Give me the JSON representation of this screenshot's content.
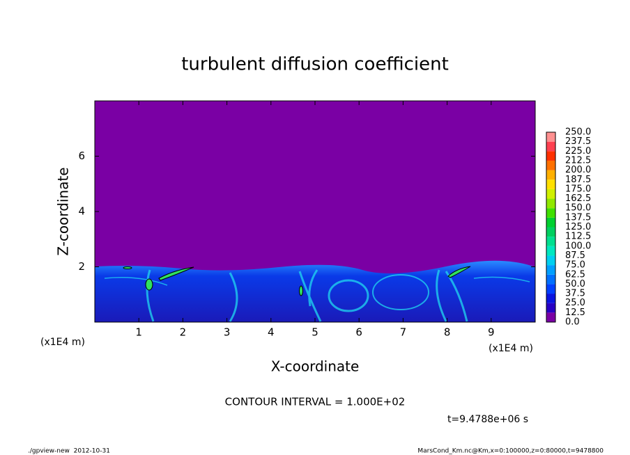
{
  "chart_data": {
    "type": "contour",
    "title": "turbulent diffusion coefficient",
    "xlabel": "X-coordinate",
    "ylabel": "Z-coordinate",
    "x_unit": "(x1E4 m)",
    "y_unit": "(x1E4 m)",
    "xlim": [
      0,
      10
    ],
    "xticks": [
      1,
      2,
      3,
      4,
      5,
      6,
      7,
      8,
      9
    ],
    "ylim": [
      0,
      8
    ],
    "yticks": [
      2,
      4,
      6
    ],
    "colorbar": {
      "levels": [
        {
          "value": 0,
          "label": "0.0"
        },
        12.5,
        {
          "value": 25,
          "label": "25.0"
        },
        37.5,
        {
          "value": 50,
          "label": "50.0"
        },
        62.5,
        {
          "value": 75,
          "label": "75.0"
        },
        87.5,
        {
          "value": 100,
          "label": "100.0"
        },
        112.5,
        {
          "value": 125,
          "label": "125.0"
        },
        137.5,
        {
          "value": 150,
          "label": "150.0"
        },
        162.5,
        {
          "value": 175,
          "label": "175.0"
        },
        187.5,
        {
          "value": 200,
          "label": "200.0"
        },
        212.5,
        {
          "value": 225,
          "label": "225.0"
        },
        237.5,
        {
          "value": 250,
          "label": "250.0"
        }
      ],
      "colors": [
        "#7a00a4",
        "#2800c4",
        "#0a14e0",
        "#0040ff",
        "#0070ff",
        "#00a0ff",
        "#00d0f0",
        "#00e8c0",
        "#00e090",
        "#00d060",
        "#00d030",
        "#40e000",
        "#90e800",
        "#d0f000",
        "#ffe000",
        "#ffb000",
        "#ff7000",
        "#ff3000",
        "#ff4050",
        "#ff9090"
      ]
    },
    "contour_interval_label": "CONTOUR INTERVAL = 1.000E+02",
    "time_label": "t=9.4788e+06 s"
  },
  "footer": {
    "left": "./gpview-new  2012-10-31",
    "right": "MarsCond_Km.nc@Km,x=0:100000,z=0:80000,t=9478800"
  }
}
